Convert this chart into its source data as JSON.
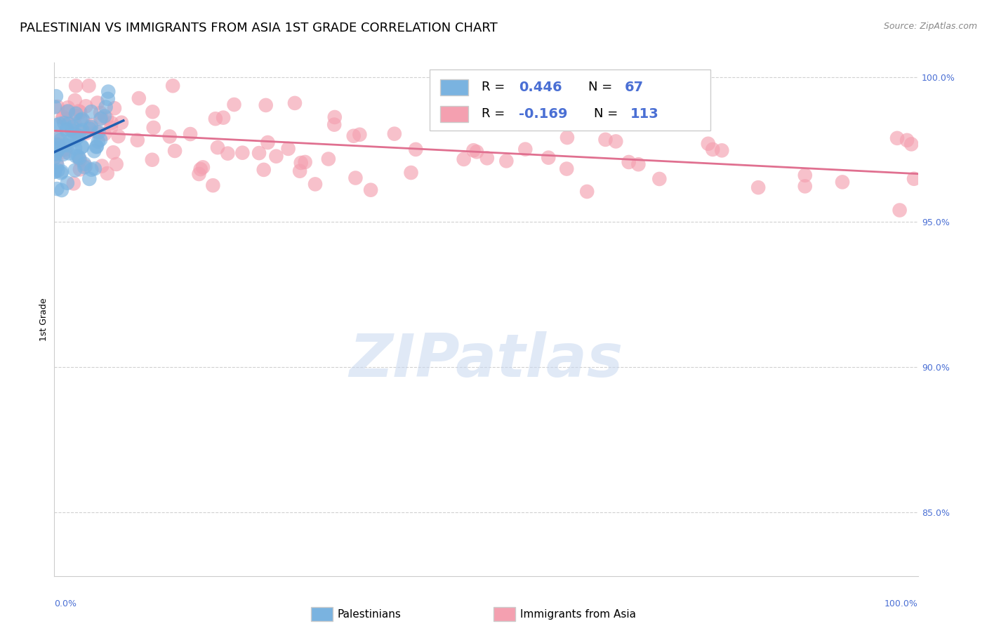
{
  "title": "PALESTINIAN VS IMMIGRANTS FROM ASIA 1ST GRADE CORRELATION CHART",
  "source": "Source: ZipAtlas.com",
  "ylabel": "1st Grade",
  "R_blue": 0.446,
  "N_blue": 67,
  "R_pink": -0.169,
  "N_pink": 113,
  "x_min": 0.0,
  "x_max": 1.0,
  "y_min": 0.828,
  "y_max": 1.005,
  "yticks": [
    0.85,
    0.9,
    0.95,
    1.0
  ],
  "ytick_labels": [
    "85.0%",
    "90.0%",
    "95.0%",
    "100.0%"
  ],
  "ytick_color": "#4a6fd4",
  "grid_color": "#cccccc",
  "background": "#ffffff",
  "blue_color": "#7ab3e0",
  "pink_color": "#f4a0b0",
  "blue_line_color": "#2060b0",
  "pink_line_color": "#e07090",
  "watermark": "ZIPatlas",
  "title_fontsize": 13,
  "axis_label_fontsize": 9,
  "tick_fontsize": 9,
  "legend_R_blue": "0.446",
  "legend_N_blue": "67",
  "legend_R_pink": "-0.169",
  "legend_N_pink": "113"
}
